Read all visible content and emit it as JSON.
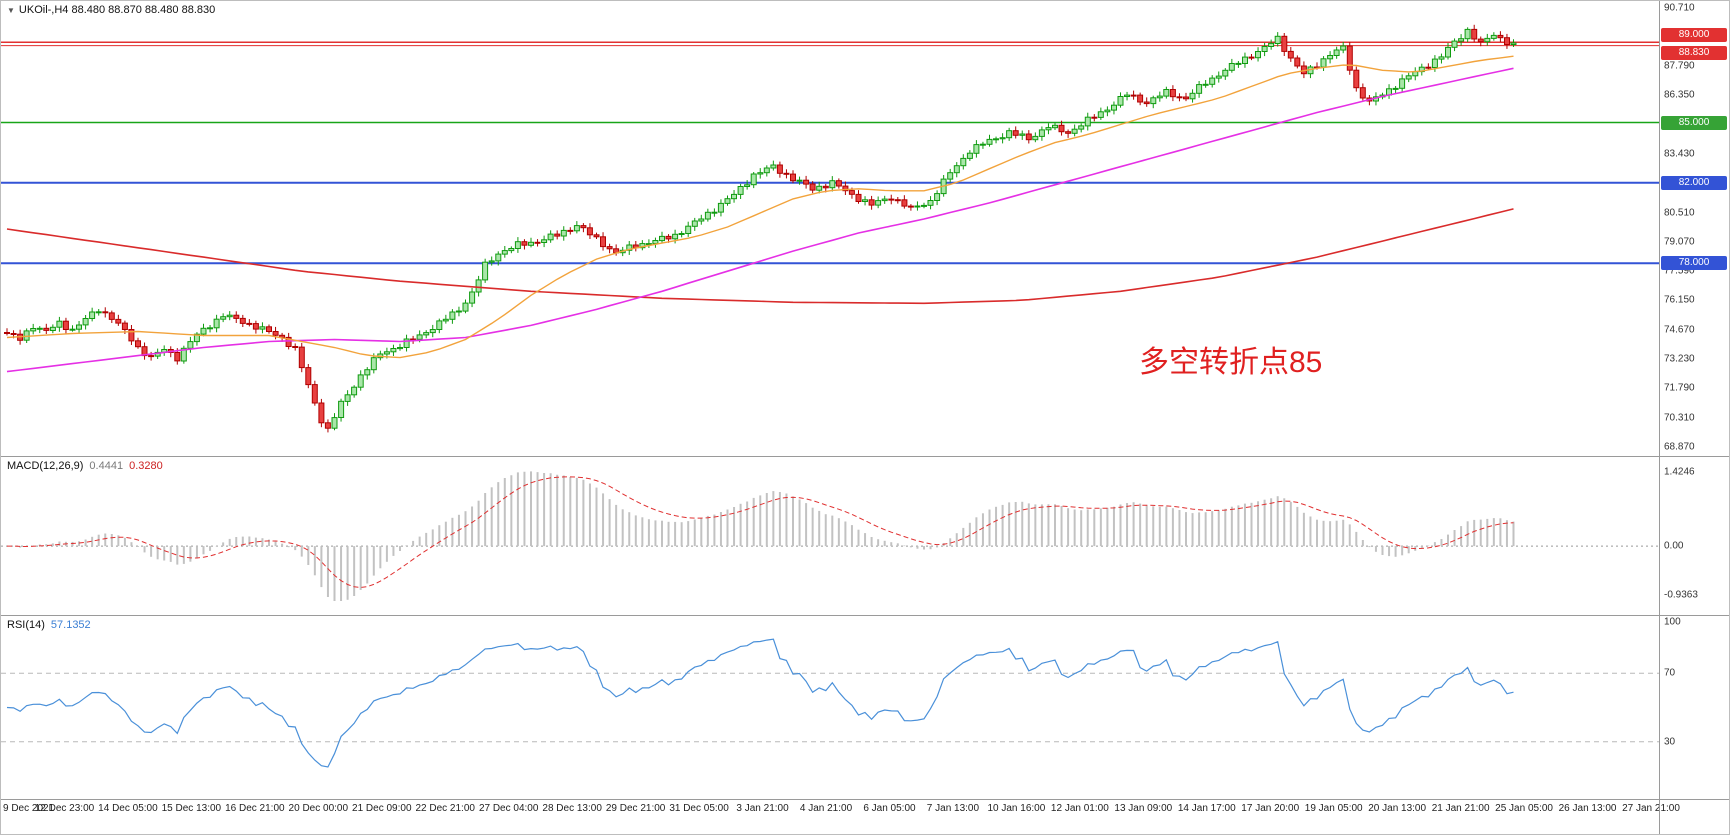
{
  "header": {
    "symbol_line": "UKOil-,H4  88.480 88.870 88.480 88.830"
  },
  "chart_data": {
    "type": "candlestick",
    "symbol": "UKOil-",
    "timeframe": "H4",
    "ohlc_display": {
      "open": 88.48,
      "high": 88.87,
      "low": 88.48,
      "close": 88.83
    },
    "bars_total": 231,
    "price_axis_range": [
      68.55,
      91.05
    ],
    "annotation": {
      "text": "多空转折点85",
      "color": "#e02020"
    },
    "colors": {
      "up_fill": "#a9e6a9",
      "up_stroke": "#0f9b0f",
      "down_fill": "#e84040",
      "down_stroke": "#b00000",
      "ma_fast": "#f2a33c",
      "ma_mid": "#e530e5",
      "ma_slow": "#d92b2b",
      "macd_hist": "#c2c2c2",
      "macd_signal": "#e03030",
      "rsi_line": "#4a90d9"
    },
    "close_path": [
      [
        0,
        74.5
      ],
      [
        2,
        74.2
      ],
      [
        4,
        74.9
      ],
      [
        6,
        74.6
      ],
      [
        8,
        75.0
      ],
      [
        10,
        74.7
      ],
      [
        12,
        75.2
      ],
      [
        14,
        75.7
      ],
      [
        16,
        75.3
      ],
      [
        18,
        74.6
      ],
      [
        20,
        73.8
      ],
      [
        22,
        73.3
      ],
      [
        24,
        73.7
      ],
      [
        26,
        73.3
      ],
      [
        28,
        74.1
      ],
      [
        30,
        74.7
      ],
      [
        33,
        75.4
      ],
      [
        36,
        75.1
      ],
      [
        39,
        74.7
      ],
      [
        42,
        74.3
      ],
      [
        44,
        73.7
      ],
      [
        46,
        71.9
      ],
      [
        48,
        70.2
      ],
      [
        49,
        69.7
      ],
      [
        51,
        71.0
      ],
      [
        54,
        72.4
      ],
      [
        57,
        73.5
      ],
      [
        60,
        73.9
      ],
      [
        63,
        74.4
      ],
      [
        66,
        75.0
      ],
      [
        69,
        75.7
      ],
      [
        71,
        76.5
      ],
      [
        73,
        77.9
      ],
      [
        75,
        78.5
      ],
      [
        78,
        78.9
      ],
      [
        81,
        79.1
      ],
      [
        84,
        79.4
      ],
      [
        87,
        79.9
      ],
      [
        90,
        79.2
      ],
      [
        93,
        78.5
      ],
      [
        96,
        78.9
      ],
      [
        99,
        79.1
      ],
      [
        102,
        79.4
      ],
      [
        105,
        80.0
      ],
      [
        108,
        80.7
      ],
      [
        111,
        81.4
      ],
      [
        114,
        82.4
      ],
      [
        117,
        82.8
      ],
      [
        120,
        82.2
      ],
      [
        123,
        81.7
      ],
      [
        126,
        82.0
      ],
      [
        129,
        81.4
      ],
      [
        132,
        80.9
      ],
      [
        135,
        81.3
      ],
      [
        138,
        80.7
      ],
      [
        141,
        81.1
      ],
      [
        144,
        82.5
      ],
      [
        147,
        83.6
      ],
      [
        150,
        84.1
      ],
      [
        153,
        84.5
      ],
      [
        156,
        84.2
      ],
      [
        159,
        84.8
      ],
      [
        162,
        84.5
      ],
      [
        165,
        85.1
      ],
      [
        168,
        85.7
      ],
      [
        171,
        86.4
      ],
      [
        174,
        86.0
      ],
      [
        177,
        86.5
      ],
      [
        180,
        86.2
      ],
      [
        183,
        87.0
      ],
      [
        186,
        87.6
      ],
      [
        189,
        88.2
      ],
      [
        192,
        88.7
      ],
      [
        194,
        89.2
      ],
      [
        196,
        88.2
      ],
      [
        198,
        87.4
      ],
      [
        200,
        87.9
      ],
      [
        202,
        88.4
      ],
      [
        204,
        88.7
      ],
      [
        206,
        86.7
      ],
      [
        208,
        86.0
      ],
      [
        210,
        86.4
      ],
      [
        213,
        87.1
      ],
      [
        216,
        87.7
      ],
      [
        219,
        88.3
      ],
      [
        221,
        89.0
      ],
      [
        223,
        89.6
      ],
      [
        225,
        88.9
      ],
      [
        227,
        89.4
      ],
      [
        230,
        88.83
      ]
    ],
    "ma_fast_path": [
      [
        0,
        74.3
      ],
      [
        10,
        74.5
      ],
      [
        20,
        74.6
      ],
      [
        30,
        74.4
      ],
      [
        40,
        74.4
      ],
      [
        50,
        73.8
      ],
      [
        55,
        73.4
      ],
      [
        60,
        73.3
      ],
      [
        65,
        73.6
      ],
      [
        70,
        74.2
      ],
      [
        75,
        75.2
      ],
      [
        80,
        76.4
      ],
      [
        85,
        77.4
      ],
      [
        90,
        78.2
      ],
      [
        95,
        78.7
      ],
      [
        100,
        79.0
      ],
      [
        105,
        79.3
      ],
      [
        110,
        79.8
      ],
      [
        115,
        80.5
      ],
      [
        120,
        81.2
      ],
      [
        125,
        81.6
      ],
      [
        130,
        81.7
      ],
      [
        135,
        81.6
      ],
      [
        140,
        81.6
      ],
      [
        145,
        82.0
      ],
      [
        150,
        82.7
      ],
      [
        155,
        83.4
      ],
      [
        160,
        84.0
      ],
      [
        165,
        84.4
      ],
      [
        170,
        84.9
      ],
      [
        175,
        85.4
      ],
      [
        180,
        85.8
      ],
      [
        185,
        86.2
      ],
      [
        190,
        86.8
      ],
      [
        195,
        87.4
      ],
      [
        200,
        87.7
      ],
      [
        205,
        87.9
      ],
      [
        210,
        87.6
      ],
      [
        215,
        87.5
      ],
      [
        220,
        87.8
      ],
      [
        225,
        88.1
      ],
      [
        230,
        88.3
      ]
    ],
    "ma_mid_path": [
      [
        0,
        72.6
      ],
      [
        10,
        73.0
      ],
      [
        20,
        73.4
      ],
      [
        30,
        73.8
      ],
      [
        40,
        74.1
      ],
      [
        50,
        74.2
      ],
      [
        60,
        74.1
      ],
      [
        70,
        74.3
      ],
      [
        80,
        74.9
      ],
      [
        90,
        75.7
      ],
      [
        100,
        76.6
      ],
      [
        110,
        77.6
      ],
      [
        120,
        78.6
      ],
      [
        130,
        79.5
      ],
      [
        140,
        80.2
      ],
      [
        150,
        81.0
      ],
      [
        160,
        81.9
      ],
      [
        170,
        82.8
      ],
      [
        180,
        83.7
      ],
      [
        190,
        84.6
      ],
      [
        200,
        85.5
      ],
      [
        210,
        86.3
      ],
      [
        220,
        87.0
      ],
      [
        230,
        87.7
      ]
    ],
    "ma_slow_path": [
      [
        0,
        79.7
      ],
      [
        15,
        79.0
      ],
      [
        30,
        78.3
      ],
      [
        45,
        77.6
      ],
      [
        60,
        77.1
      ],
      [
        80,
        76.6
      ],
      [
        100,
        76.25
      ],
      [
        120,
        76.05
      ],
      [
        140,
        76.0
      ],
      [
        155,
        76.15
      ],
      [
        170,
        76.6
      ],
      [
        185,
        77.3
      ],
      [
        200,
        78.3
      ],
      [
        215,
        79.5
      ],
      [
        230,
        80.7
      ]
    ],
    "levels": [
      {
        "price": 89.0,
        "color": "#e23131",
        "width": 1.5
      },
      {
        "price": 88.83,
        "color": "#e23131",
        "width": 1
      },
      {
        "price": 85.0,
        "color": "#18a518",
        "width": 1.5
      },
      {
        "price": 82.0,
        "color": "#3353d6",
        "width": 2
      },
      {
        "price": 78.0,
        "color": "#3353d6",
        "width": 2
      }
    ],
    "price_ticks": [
      {
        "label": "90.710",
        "price": 90.71
      },
      {
        "label": "87.790",
        "price": 87.79
      },
      {
        "label": "86.350",
        "price": 86.35
      },
      {
        "label": "83.430",
        "price": 83.43
      },
      {
        "label": "80.510",
        "price": 80.51
      },
      {
        "label": "79.070",
        "price": 79.07
      },
      {
        "label": "77.590",
        "price": 77.59
      },
      {
        "label": "76.150",
        "price": 76.15
      },
      {
        "label": "74.670",
        "price": 74.67
      },
      {
        "label": "73.230",
        "price": 73.23
      },
      {
        "label": "71.790",
        "price": 71.79
      },
      {
        "label": "70.310",
        "price": 70.31
      },
      {
        "label": "68.870",
        "price": 68.87
      }
    ],
    "price_badges": [
      {
        "label": "89.000",
        "price": 89.0,
        "bg": "#e23131",
        "anchor": "above"
      },
      {
        "label": "88.830",
        "price": 88.83,
        "bg": "#e23131",
        "anchor": "below"
      },
      {
        "label": "85.000",
        "price": 85.0,
        "bg": "#36a336",
        "anchor": "mid"
      },
      {
        "label": "82.000",
        "price": 82.0,
        "bg": "#3353d6",
        "anchor": "mid"
      },
      {
        "label": "78.000",
        "price": 78.0,
        "bg": "#3353d6",
        "anchor": "mid"
      }
    ],
    "macd": {
      "label": "MACD(12,26,9)",
      "value_main": "0.4441",
      "value_signal": "0.3280",
      "params": [
        12,
        26,
        9
      ],
      "axis": [
        {
          "label": "1.4246",
          "value": 1.4246
        },
        {
          "label": "0.00",
          "value": 0
        },
        {
          "label": "-0.9363",
          "value": -0.9363
        }
      ],
      "scale_range": [
        -1.05,
        1.55
      ]
    },
    "rsi": {
      "label": "RSI(14)",
      "value_text": "57.1352",
      "period": 14,
      "axis": [
        {
          "label": "100",
          "value": 100
        },
        {
          "label": "70",
          "value": 70
        },
        {
          "label": "30",
          "value": 30
        }
      ],
      "levels": [
        70,
        30
      ]
    },
    "x_labels": [
      "9 Dec 2021",
      "12 Dec 23:00",
      "14 Dec 05:00",
      "15 Dec 13:00",
      "16 Dec 21:00",
      "20 Dec 00:00",
      "21 Dec 09:00",
      "22 Dec 21:00",
      "27 Dec 04:00",
      "28 Dec 13:00",
      "29 Dec 21:00",
      "31 Dec 05:00",
      "3 Jan 21:00",
      "4 Jan 21:00",
      "6 Jan 05:00",
      "7 Jan 13:00",
      "10 Jan 16:00",
      "12 Jan 01:00",
      "13 Jan 09:00",
      "14 Jan 17:00",
      "17 Jan 20:00",
      "19 Jan 05:00",
      "20 Jan 13:00",
      "21 Jan 21:00",
      "25 Jan 05:00",
      "26 Jan 13:00",
      "27 Jan 21:00"
    ]
  }
}
